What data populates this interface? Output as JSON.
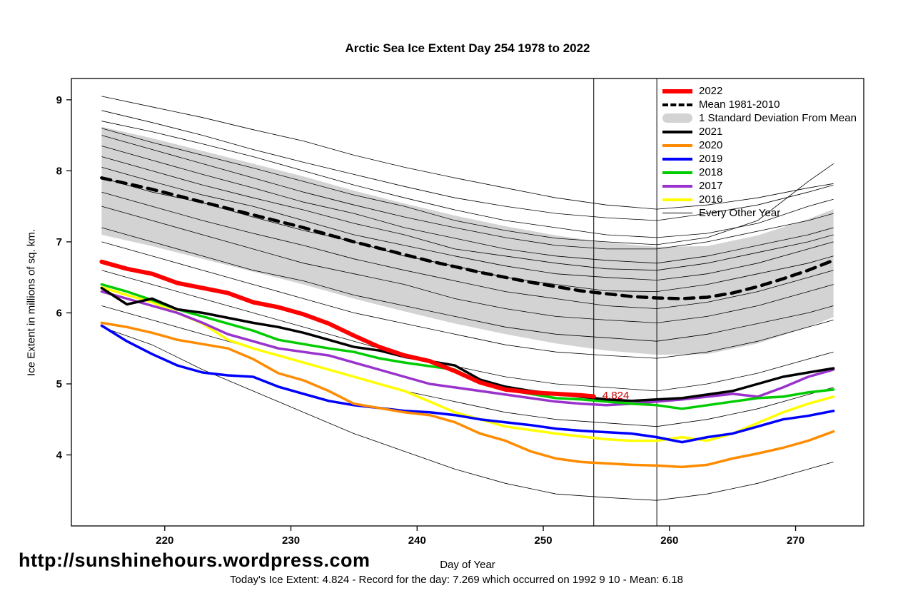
{
  "footer": {
    "url": "http://sunshinehours.wordpress.com",
    "summary": "Today's Ice Extent: 4.824  - Record for the day: 7.269 which occurred on 1992 9 10  - Mean: 6.18"
  },
  "legend": {
    "items": [
      {
        "label": "2022",
        "color": "#FF0000",
        "style": "thick"
      },
      {
        "label": "Mean 1981-2010",
        "color": "#000000",
        "style": "dashed"
      },
      {
        "label": "1 Standard Deviation From Mean",
        "color": "#D3D3D3",
        "style": "box"
      },
      {
        "label": "2021",
        "color": "#000000",
        "style": "solid"
      },
      {
        "label": "2020",
        "color": "#FF8C00",
        "style": "solid"
      },
      {
        "label": "2019",
        "color": "#0000FF",
        "style": "solid"
      },
      {
        "label": "2018",
        "color": "#00CC00",
        "style": "solid"
      },
      {
        "label": "2017",
        "color": "#9933CC",
        "style": "solid"
      },
      {
        "label": "2016",
        "color": "#FFFF00",
        "style": "solid"
      },
      {
        "label": "Every Other Year",
        "color": "#000000",
        "style": "thin"
      }
    ]
  },
  "chart_data": {
    "type": "line",
    "title": "Arctic Sea Ice Extent Day 254 1978 to 2022",
    "xlabel": "Day of Year",
    "ylabel": "Ice Extent in millions of sq. km.",
    "xlim": [
      212.6,
      275.4
    ],
    "ylim": [
      3.0,
      9.3
    ],
    "xticks": [
      220,
      230,
      240,
      250,
      260,
      270
    ],
    "yticks": [
      4,
      5,
      6,
      7,
      8,
      9
    ],
    "grid": false,
    "legend_position": "top-right",
    "marker_days": [
      254,
      259
    ],
    "annotation": {
      "text": "4.824",
      "day": 254.4,
      "value": 4.84,
      "color": "#CC0000"
    },
    "days": [
      215,
      217,
      219,
      221,
      223,
      225,
      227,
      229,
      231,
      233,
      235,
      237,
      239,
      241,
      243,
      245,
      247,
      249,
      251,
      253,
      255,
      257,
      259,
      261,
      263,
      265,
      267,
      269,
      271,
      273
    ],
    "series": [
      {
        "name": "Mean 1981-2010",
        "color": "#000000",
        "style": "dashed",
        "width": 4.5,
        "values": [
          7.9,
          7.82,
          7.74,
          7.65,
          7.56,
          7.47,
          7.38,
          7.29,
          7.2,
          7.1,
          7.0,
          6.91,
          6.82,
          6.73,
          6.65,
          6.57,
          6.5,
          6.43,
          6.37,
          6.31,
          6.27,
          6.23,
          6.21,
          6.2,
          6.22,
          6.28,
          6.37,
          6.48,
          6.6,
          6.74
        ]
      },
      {
        "name": "2016",
        "color": "#FFFF00",
        "style": "solid",
        "width": 3.5,
        "values": [
          6.36,
          6.25,
          6.15,
          6.0,
          5.85,
          5.62,
          5.5,
          5.4,
          5.3,
          5.2,
          5.1,
          5.0,
          4.9,
          4.75,
          4.6,
          4.5,
          4.4,
          4.35,
          4.3,
          4.26,
          4.22,
          4.2,
          4.2,
          4.25,
          4.2,
          4.3,
          4.45,
          4.6,
          4.72,
          4.82
        ]
      },
      {
        "name": "2017",
        "color": "#9933CC",
        "style": "solid",
        "width": 3.5,
        "values": [
          6.3,
          6.2,
          6.1,
          6.0,
          5.86,
          5.7,
          5.6,
          5.5,
          5.45,
          5.4,
          5.3,
          5.2,
          5.1,
          5.0,
          4.95,
          4.9,
          4.85,
          4.8,
          4.75,
          4.72,
          4.7,
          4.72,
          4.75,
          4.78,
          4.82,
          4.86,
          4.82,
          4.95,
          5.1,
          5.2
        ]
      },
      {
        "name": "2018",
        "color": "#00CC00",
        "style": "solid",
        "width": 3.5,
        "values": [
          6.4,
          6.3,
          6.18,
          6.05,
          5.95,
          5.85,
          5.75,
          5.62,
          5.56,
          5.5,
          5.45,
          5.36,
          5.3,
          5.25,
          5.2,
          5.02,
          4.92,
          4.86,
          4.8,
          4.78,
          4.75,
          4.72,
          4.7,
          4.65,
          4.7,
          4.75,
          4.8,
          4.82,
          4.88,
          4.92
        ]
      },
      {
        "name": "2019",
        "color": "#0000FF",
        "style": "solid",
        "width": 3.5,
        "values": [
          5.82,
          5.6,
          5.42,
          5.26,
          5.16,
          5.12,
          5.1,
          4.96,
          4.86,
          4.76,
          4.7,
          4.66,
          4.62,
          4.6,
          4.56,
          4.5,
          4.46,
          4.42,
          4.37,
          4.34,
          4.32,
          4.3,
          4.25,
          4.18,
          4.25,
          4.3,
          4.4,
          4.5,
          4.55,
          4.62
        ]
      },
      {
        "name": "2020",
        "color": "#FF8C00",
        "style": "solid",
        "width": 3.5,
        "values": [
          5.86,
          5.8,
          5.72,
          5.62,
          5.56,
          5.5,
          5.35,
          5.15,
          5.05,
          4.9,
          4.72,
          4.66,
          4.6,
          4.56,
          4.46,
          4.3,
          4.2,
          4.05,
          3.95,
          3.9,
          3.88,
          3.86,
          3.85,
          3.83,
          3.86,
          3.95,
          4.02,
          4.1,
          4.2,
          4.33
        ]
      },
      {
        "name": "2021",
        "color": "#000000",
        "style": "solid",
        "width": 3.5,
        "values": [
          6.35,
          6.12,
          6.2,
          6.05,
          6.0,
          5.93,
          5.86,
          5.8,
          5.72,
          5.62,
          5.52,
          5.47,
          5.38,
          5.32,
          5.26,
          5.06,
          4.96,
          4.9,
          4.86,
          4.82,
          4.78,
          4.76,
          4.78,
          4.8,
          4.85,
          4.9,
          5.0,
          5.1,
          5.16,
          5.22
        ]
      },
      {
        "name": "2022",
        "color": "#FF0000",
        "style": "solid",
        "width": 6,
        "days": [
          215,
          217,
          219,
          221,
          223,
          225,
          227,
          229,
          231,
          233,
          235,
          237,
          239,
          241,
          243,
          245,
          247,
          249,
          251,
          253,
          254
        ],
        "values": [
          6.72,
          6.62,
          6.55,
          6.42,
          6.35,
          6.28,
          6.15,
          6.08,
          5.98,
          5.85,
          5.68,
          5.52,
          5.4,
          5.32,
          5.18,
          5.02,
          4.92,
          4.88,
          4.86,
          4.84,
          4.824
        ]
      }
    ],
    "band": {
      "name": "1 Standard Deviation From Mean",
      "color": "#D3D3D3",
      "days": [
        215,
        219,
        223,
        227,
        231,
        235,
        239,
        243,
        247,
        251,
        255,
        259,
        263,
        267,
        271,
        273
      ],
      "upper": [
        8.62,
        8.46,
        8.28,
        8.1,
        7.92,
        7.72,
        7.54,
        7.37,
        7.22,
        7.09,
        6.99,
        6.93,
        6.94,
        7.09,
        7.32,
        7.46
      ],
      "lower": [
        7.1,
        6.94,
        6.76,
        6.58,
        6.4,
        6.2,
        6.02,
        5.85,
        5.7,
        5.57,
        5.47,
        5.41,
        5.42,
        5.57,
        5.8,
        5.94
      ]
    },
    "background": {
      "name": "Every Other Year",
      "color": "#000000",
      "width": 0.8,
      "days": [
        215,
        219,
        223,
        227,
        231,
        235,
        239,
        243,
        247,
        251,
        255,
        259,
        263,
        267,
        271,
        273
      ],
      "lines": [
        [
          9.05,
          8.9,
          8.75,
          8.58,
          8.42,
          8.22,
          8.05,
          7.9,
          7.76,
          7.62,
          7.52,
          7.46,
          7.52,
          7.62,
          7.76,
          7.82
        ],
        [
          8.85,
          8.68,
          8.5,
          8.3,
          8.12,
          7.95,
          7.78,
          7.62,
          7.5,
          7.4,
          7.34,
          7.3,
          7.4,
          7.52,
          7.7,
          7.8
        ],
        [
          8.7,
          8.55,
          8.38,
          8.2,
          8.0,
          7.8,
          7.62,
          7.45,
          7.3,
          7.2,
          7.1,
          7.06,
          7.12,
          7.26,
          7.5,
          7.6
        ],
        [
          8.6,
          8.4,
          8.22,
          8.04,
          7.85,
          7.66,
          7.5,
          7.3,
          7.16,
          7.05,
          7.0,
          6.96,
          7.06,
          7.3,
          7.85,
          8.1
        ],
        [
          8.5,
          8.3,
          8.1,
          7.9,
          7.7,
          7.52,
          7.35,
          7.2,
          7.06,
          6.95,
          6.9,
          6.9,
          7.0,
          7.15,
          7.3,
          7.4
        ],
        [
          8.35,
          8.15,
          7.95,
          7.76,
          7.56,
          7.4,
          7.2,
          7.05,
          6.9,
          6.8,
          6.74,
          6.7,
          6.8,
          6.95,
          7.1,
          7.2
        ],
        [
          8.2,
          8.0,
          7.8,
          7.62,
          7.45,
          7.26,
          7.1,
          6.9,
          6.8,
          6.7,
          6.62,
          6.6,
          6.7,
          6.85,
          7.0,
          7.1
        ],
        [
          8.05,
          7.85,
          7.66,
          7.5,
          7.3,
          7.1,
          6.95,
          6.8,
          6.66,
          6.55,
          6.5,
          6.46,
          6.55,
          6.7,
          6.9,
          7.0
        ],
        [
          7.9,
          7.7,
          7.55,
          7.35,
          7.16,
          7.0,
          6.8,
          6.66,
          6.5,
          6.4,
          6.31,
          6.3,
          6.4,
          6.55,
          6.7,
          6.8
        ],
        [
          7.7,
          7.5,
          7.3,
          7.12,
          6.95,
          6.76,
          6.6,
          6.45,
          6.3,
          6.2,
          6.1,
          6.06,
          6.15,
          6.3,
          6.5,
          6.6
        ],
        [
          7.5,
          7.3,
          7.1,
          6.9,
          6.7,
          6.55,
          6.4,
          6.2,
          6.06,
          5.95,
          5.9,
          5.86,
          5.95,
          6.1,
          6.3,
          6.4
        ],
        [
          7.2,
          7.0,
          6.8,
          6.6,
          6.45,
          6.25,
          6.1,
          5.95,
          5.8,
          5.7,
          5.65,
          5.6,
          5.7,
          5.85,
          6.0,
          6.1
        ],
        [
          7.0,
          6.8,
          6.6,
          6.4,
          6.2,
          6.0,
          5.85,
          5.7,
          5.55,
          5.45,
          5.4,
          5.36,
          5.45,
          5.6,
          5.8,
          5.9
        ],
        [
          6.6,
          6.4,
          6.2,
          6.0,
          5.8,
          5.6,
          5.4,
          5.25,
          5.1,
          5.0,
          4.95,
          4.9,
          5.0,
          5.15,
          5.35,
          5.45
        ],
        [
          6.1,
          5.9,
          5.7,
          5.5,
          5.3,
          5.1,
          4.9,
          4.75,
          4.6,
          4.5,
          4.45,
          4.4,
          4.5,
          4.65,
          4.85,
          4.95
        ],
        [
          5.8,
          5.55,
          5.2,
          4.9,
          4.6,
          4.3,
          4.05,
          3.8,
          3.6,
          3.45,
          3.4,
          3.36,
          3.45,
          3.6,
          3.8,
          3.9
        ]
      ]
    }
  }
}
